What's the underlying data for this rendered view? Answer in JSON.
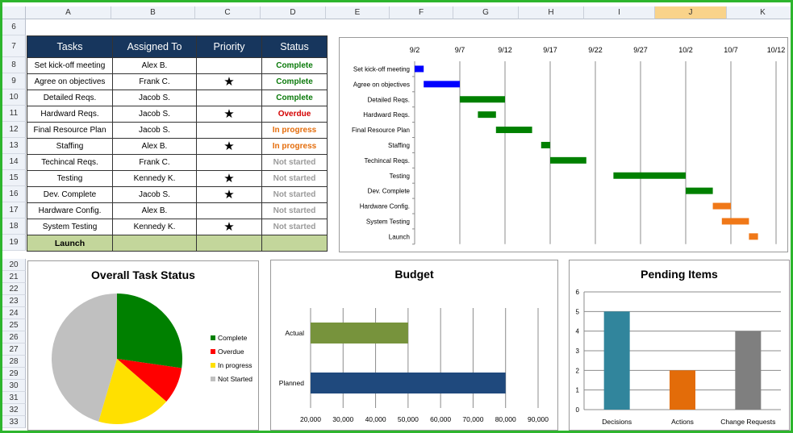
{
  "columns": [
    "A",
    "B",
    "C",
    "D",
    "E",
    "F",
    "G",
    "H",
    "I",
    "J",
    "K"
  ],
  "selected_column": "J",
  "rows_top": [
    "6",
    "7",
    "8",
    "9",
    "10",
    "11",
    "12",
    "13",
    "14",
    "15",
    "16",
    "17",
    "18",
    "19"
  ],
  "rows_bottom": [
    "20",
    "21",
    "22",
    "23",
    "24",
    "25",
    "26",
    "27",
    "28",
    "29",
    "30",
    "31",
    "32",
    "33"
  ],
  "task_table": {
    "headers": [
      "Tasks",
      "Assigned To",
      "Priority",
      "Status"
    ],
    "rows": [
      {
        "task": "Set kick-off meeting",
        "assigned": "Alex B.",
        "priority": false,
        "status": "Complete",
        "status_color": "#0b7a0b"
      },
      {
        "task": "Agree on objectives",
        "assigned": "Frank C.",
        "priority": true,
        "status": "Complete",
        "status_color": "#0b7a0b"
      },
      {
        "task": "Detailed Reqs.",
        "assigned": "Jacob S.",
        "priority": false,
        "status": "Complete",
        "status_color": "#0b7a0b"
      },
      {
        "task": "Hardward Reqs.",
        "assigned": "Jacob S.",
        "priority": true,
        "status": "Overdue",
        "status_color": "#d40000"
      },
      {
        "task": "Final Resource Plan",
        "assigned": "Jacob S.",
        "priority": false,
        "status": "In progress",
        "status_color": "#e46c0a"
      },
      {
        "task": "Staffing",
        "assigned": "Alex B.",
        "priority": true,
        "status": "In progress",
        "status_color": "#e46c0a"
      },
      {
        "task": "Techincal Reqs.",
        "assigned": "Frank C.",
        "priority": false,
        "status": "Not started",
        "status_color": "#9a9a9a"
      },
      {
        "task": "Testing",
        "assigned": "Kennedy K.",
        "priority": true,
        "status": "Not started",
        "status_color": "#9a9a9a"
      },
      {
        "task": "Dev. Complete",
        "assigned": "Jacob S.",
        "priority": true,
        "status": "Not started",
        "status_color": "#9a9a9a"
      },
      {
        "task": "Hardware Config.",
        "assigned": "Alex B.",
        "priority": false,
        "status": "Not started",
        "status_color": "#9a9a9a"
      },
      {
        "task": "System Testing",
        "assigned": "Kennedy K.",
        "priority": true,
        "status": "Not started",
        "status_color": "#9a9a9a"
      }
    ],
    "launch_label": "Launch",
    "star_glyph": "★"
  },
  "chart_data": [
    {
      "type": "bar",
      "subtype": "gantt",
      "title": "",
      "x_ticks": [
        "9/2",
        "9/7",
        "9/12",
        "9/17",
        "9/22",
        "9/27",
        "10/2",
        "10/7",
        "10/12"
      ],
      "xlim": [
        "2024-09-02",
        "2024-10-12"
      ],
      "grid": true,
      "tasks": [
        {
          "name": "Set kick-off meeting",
          "start": "2024-09-02",
          "end": "2024-09-03",
          "color": "#0000ff"
        },
        {
          "name": "Agree on objectives",
          "start": "2024-09-03",
          "end": "2024-09-07",
          "color": "#0000ff"
        },
        {
          "name": "Detailed Reqs.",
          "start": "2024-09-07",
          "end": "2024-09-12",
          "color": "#008000"
        },
        {
          "name": "Hardward Reqs.",
          "start": "2024-09-09",
          "end": "2024-09-11",
          "color": "#008000"
        },
        {
          "name": "Final Resource Plan",
          "start": "2024-09-11",
          "end": "2024-09-15",
          "color": "#008000"
        },
        {
          "name": "Staffing",
          "start": "2024-09-16",
          "end": "2024-09-17",
          "color": "#008000"
        },
        {
          "name": "Techincal Reqs.",
          "start": "2024-09-17",
          "end": "2024-09-21",
          "color": "#008000"
        },
        {
          "name": "Testing",
          "start": "2024-09-24",
          "end": "2024-10-02",
          "color": "#008000"
        },
        {
          "name": "Dev. Complete",
          "start": "2024-10-02",
          "end": "2024-10-05",
          "color": "#008000"
        },
        {
          "name": "Hardware Config.",
          "start": "2024-10-05",
          "end": "2024-10-07",
          "color": "#f07818"
        },
        {
          "name": "System Testing",
          "start": "2024-10-06",
          "end": "2024-10-09",
          "color": "#f07818"
        },
        {
          "name": "Launch",
          "start": "2024-10-09",
          "end": "2024-10-10",
          "color": "#f07818"
        }
      ]
    },
    {
      "type": "pie",
      "title": "Overall Task Status",
      "legend": "right",
      "slices": [
        {
          "label": "Complete",
          "value": 3,
          "color": "#008000"
        },
        {
          "label": "Overdue",
          "value": 1,
          "color": "#ff0000"
        },
        {
          "label": "In progress",
          "value": 2,
          "color": "#ffe000"
        },
        {
          "label": "Not Started",
          "value": 5,
          "color": "#c0c0c0"
        }
      ]
    },
    {
      "type": "bar",
      "orientation": "horizontal",
      "title": "Budget",
      "categories": [
        "Actual",
        "Planned"
      ],
      "values": [
        50000,
        80000
      ],
      "colors": [
        "#77933c",
        "#1f497d"
      ],
      "xlim": [
        20000,
        90000
      ],
      "x_ticks": [
        "20,000",
        "30,000",
        "40,000",
        "50,000",
        "60,000",
        "70,000",
        "80,000",
        "90,000"
      ],
      "grid": true
    },
    {
      "type": "bar",
      "title": "Pending Items",
      "categories": [
        "Decisions",
        "Actions",
        "Change Requests"
      ],
      "values": [
        5,
        2,
        4
      ],
      "colors": [
        "#31859c",
        "#e36c09",
        "#7f7f7f"
      ],
      "ylim": [
        0,
        6
      ],
      "y_ticks": [
        "0",
        "1",
        "2",
        "3",
        "4",
        "5",
        "6"
      ],
      "grid": true
    }
  ]
}
